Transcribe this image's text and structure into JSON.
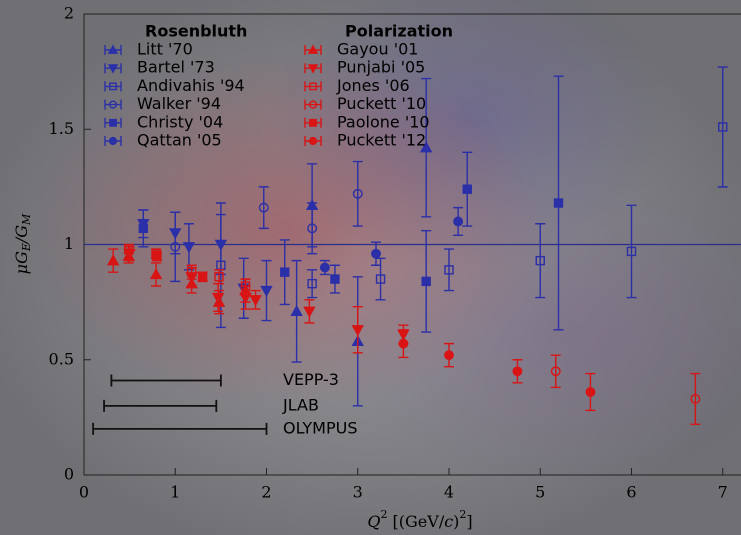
{
  "chart_data": {
    "type": "errorscatter",
    "xlim": [
      0,
      7.2
    ],
    "ylim": [
      0,
      2
    ],
    "xticks": [
      0,
      1,
      2,
      3,
      4,
      5,
      6,
      7
    ],
    "yticks": [
      0,
      0.5,
      1,
      1.5,
      2
    ],
    "x_label": [
      "Q",
      "2",
      " [(GeV/",
      "c",
      ")",
      "2",
      "]"
    ],
    "y_label": [
      "μG",
      "E",
      "/G",
      "M"
    ],
    "hline": 1,
    "hline_color": "#2b2f8c",
    "groups": [
      {
        "name": "Rosenbluth",
        "color": "#2b2fa8"
      },
      {
        "name": "Polarization",
        "color": "#d81414"
      }
    ],
    "series": [
      {
        "name": "Litt '70",
        "group": 0,
        "marker": "triangle-up",
        "x": [
          2.33,
          2.5,
          3.0,
          3.75
        ],
        "values": [
          0.71,
          1.17,
          0.58,
          1.42
        ],
        "errors": [
          0.22,
          0.18,
          0.28,
          0.3
        ]
      },
      {
        "name": "Bartel '73",
        "group": 0,
        "marker": "triangle-down",
        "x": [
          0.65,
          1.0,
          1.15,
          1.5,
          1.75,
          2.0
        ],
        "values": [
          1.09,
          1.05,
          0.99,
          1.0,
          0.81,
          0.8
        ],
        "errors": [
          0.06,
          0.09,
          0.1,
          0.13,
          0.13,
          0.13
        ]
      },
      {
        "name": "Andivahis '94",
        "group": 0,
        "marker": "open-square",
        "x": [
          1.5,
          2.5,
          3.25,
          4.0,
          5.0,
          6.0,
          7.0
        ],
        "values": [
          0.91,
          0.83,
          0.85,
          0.89,
          0.93,
          0.97,
          1.51
        ],
        "errors": [
          0.27,
          0.06,
          0.09,
          0.09,
          0.16,
          0.2,
          0.26
        ]
      },
      {
        "name": "Walker '94",
        "group": 0,
        "marker": "open-circle",
        "x": [
          1.0,
          1.97,
          2.5,
          3.0
        ],
        "values": [
          0.99,
          1.16,
          1.07,
          1.22
        ],
        "errors": [
          0.15,
          0.09,
          0.11,
          0.14
        ]
      },
      {
        "name": "Christy '04",
        "group": 0,
        "marker": "filled-square",
        "x": [
          0.65,
          2.2,
          2.75,
          3.75,
          4.2,
          5.2
        ],
        "values": [
          1.07,
          0.88,
          0.85,
          0.84,
          1.24,
          1.18
        ],
        "errors": [
          0.08,
          0.14,
          0.06,
          0.22,
          0.16,
          0.55
        ]
      },
      {
        "name": "Qattan '05",
        "group": 0,
        "marker": "filled-circle",
        "x": [
          2.64,
          3.2,
          4.1
        ],
        "values": [
          0.9,
          0.96,
          1.1
        ],
        "errors": [
          0.03,
          0.05,
          0.06
        ]
      },
      {
        "name": "Gayou '01",
        "group": 1,
        "marker": "triangle-up",
        "x": [
          0.32,
          0.49,
          0.79,
          1.18,
          1.48,
          1.77
        ],
        "values": [
          0.93,
          0.95,
          0.87,
          0.83,
          0.75,
          0.8
        ],
        "errors": [
          0.05,
          0.03,
          0.05,
          0.04,
          0.05,
          0.05
        ]
      },
      {
        "name": "Punjabi '05",
        "group": 1,
        "marker": "triangle-down",
        "x": [
          0.5,
          1.18,
          1.47,
          1.77,
          1.88,
          2.47,
          3.0,
          3.5
        ],
        "values": [
          0.96,
          0.86,
          0.77,
          0.77,
          0.76,
          0.71,
          0.63,
          0.61
        ],
        "errors": [
          0.03,
          0.04,
          0.06,
          0.05,
          0.04,
          0.05,
          0.1,
          0.04
        ]
      },
      {
        "name": "Jones '06",
        "group": 1,
        "marker": "open-square",
        "x": [
          0.49,
          0.79,
          1.18,
          1.48,
          1.77
        ],
        "values": [
          0.98,
          0.96,
          0.88,
          0.86,
          0.82
        ],
        "errors": [
          0.02,
          0.02,
          0.03,
          0.03,
          0.03
        ]
      },
      {
        "name": "Puckett '10",
        "group": 1,
        "marker": "open-circle",
        "x": [
          5.17,
          6.7
        ],
        "values": [
          0.45,
          0.33
        ],
        "errors": [
          0.07,
          0.11
        ]
      },
      {
        "name": "Paolone '10",
        "group": 1,
        "marker": "filled-square",
        "x": [
          0.8,
          1.3
        ],
        "values": [
          0.95,
          0.86
        ],
        "errors": [
          0.02,
          0.02
        ]
      },
      {
        "name": "Puckett '12",
        "group": 1,
        "marker": "filled-circle",
        "x": [
          3.5,
          4.0,
          4.75,
          5.55
        ],
        "values": [
          0.57,
          0.52,
          0.45,
          0.36
        ],
        "errors": [
          0.06,
          0.05,
          0.05,
          0.08
        ]
      }
    ],
    "ranges": [
      {
        "label": "VEPP-3",
        "x": [
          0.3,
          1.5
        ],
        "y": 0.41
      },
      {
        "label": "JLAB",
        "x": [
          0.22,
          1.45
        ],
        "y": 0.3
      },
      {
        "label": "OLYMPUS",
        "x": [
          0.1,
          2.0
        ],
        "y": 0.2
      }
    ]
  }
}
